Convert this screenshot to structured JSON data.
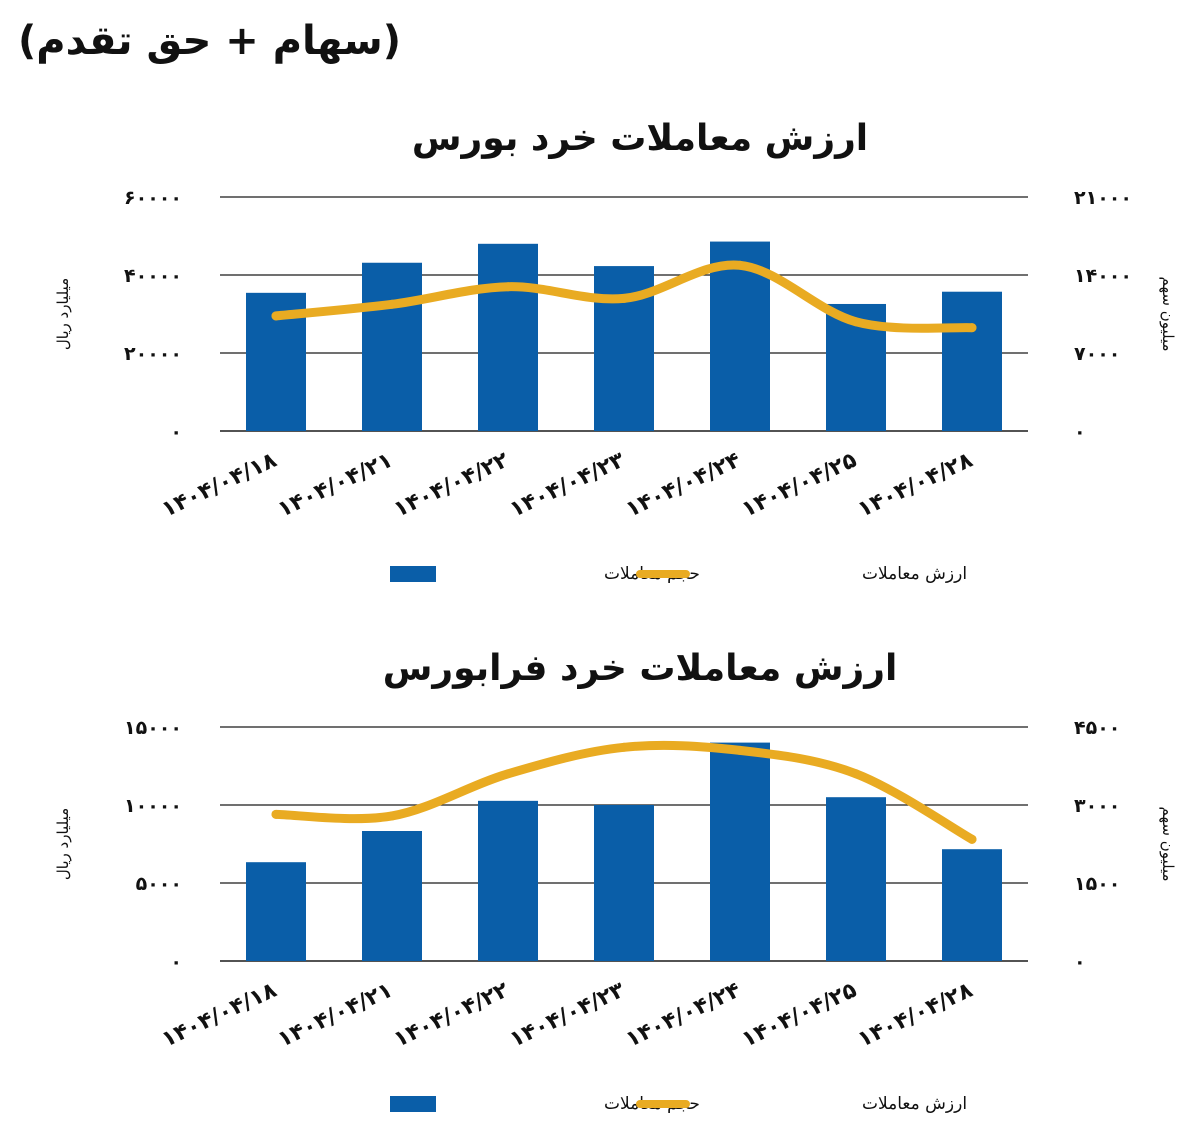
{
  "heading": "(سهام + حق تقدم)",
  "colors": {
    "bar": "#0a5ea8",
    "line": "#e9ab22",
    "grid": "#1a1a1a"
  },
  "chart_data": [
    {
      "type": "bar",
      "title": "ارزش معاملات خرد بورس",
      "categories": [
        "1404/04/18",
        "1404/04/21",
        "1404/04/22",
        "1404/04/23",
        "1404/04/24",
        "1404/04/25",
        "1404/04/28"
      ],
      "category_labels": [
        "۱۴۰۴/۰۴/۱۸",
        "۱۴۰۴/۰۴/۲۱",
        "۱۴۰۴/۰۴/۲۲",
        "۱۴۰۴/۰۴/۲۳",
        "۱۴۰۴/۰۴/۲۴",
        "۱۴۰۴/۰۴/۲۵",
        "۱۴۰۴/۰۴/۲۸"
      ],
      "series": [
        {
          "name": "حجم معاملات",
          "type": "bar",
          "axis": "right",
          "values": [
            12400,
            15100,
            16800,
            14800,
            17000,
            11400,
            12500
          ]
        },
        {
          "name": "ارزش معاملات",
          "type": "line",
          "axis": "left",
          "values": [
            29500,
            32500,
            37000,
            34000,
            42500,
            28000,
            26500
          ]
        }
      ],
      "ylabel": "میلیارد ریال",
      "y2label": "میلیون سهم",
      "ylim": [
        0,
        60000
      ],
      "y2lim": [
        0,
        21000
      ],
      "yticks": [
        "۰",
        "۲۰۰۰۰",
        "۴۰۰۰۰",
        "۶۰۰۰۰"
      ],
      "y2ticks": [
        "۰",
        "۷۰۰۰",
        "۱۴۰۰۰",
        "۲۱۰۰۰"
      ],
      "grid": true,
      "legend": "bottom"
    },
    {
      "type": "bar",
      "title": "ارزش معاملات خرد فرابورس",
      "categories": [
        "1404/04/18",
        "1404/04/21",
        "1404/04/22",
        "1404/04/23",
        "1404/04/24",
        "1404/04/25",
        "1404/04/28"
      ],
      "category_labels": [
        "۱۴۰۴/۰۴/۱۸",
        "۱۴۰۴/۰۴/۲۱",
        "۱۴۰۴/۰۴/۲۲",
        "۱۴۰۴/۰۴/۲۳",
        "۱۴۰۴/۰۴/۲۴",
        "۱۴۰۴/۰۴/۲۵",
        "۱۴۰۴/۰۴/۲۸"
      ],
      "series": [
        {
          "name": "حجم معاملات",
          "type": "bar",
          "axis": "right",
          "values": [
            1900,
            2500,
            3080,
            3000,
            4200,
            3150,
            2150
          ]
        },
        {
          "name": "ارزش معاملات",
          "type": "line",
          "axis": "left",
          "values": [
            9400,
            9300,
            12000,
            13700,
            13500,
            12000,
            7800
          ]
        }
      ],
      "ylabel": "میلیارد ریال",
      "y2label": "میلیون سهم",
      "ylim": [
        0,
        15000
      ],
      "y2lim": [
        0,
        4500
      ],
      "yticks": [
        "۰",
        "۵۰۰۰",
        "۱۰۰۰۰",
        "۱۵۰۰۰"
      ],
      "y2ticks": [
        "۰",
        "۱۵۰۰",
        "۳۰۰۰",
        "۴۵۰۰"
      ],
      "grid": true,
      "legend": "bottom"
    }
  ]
}
